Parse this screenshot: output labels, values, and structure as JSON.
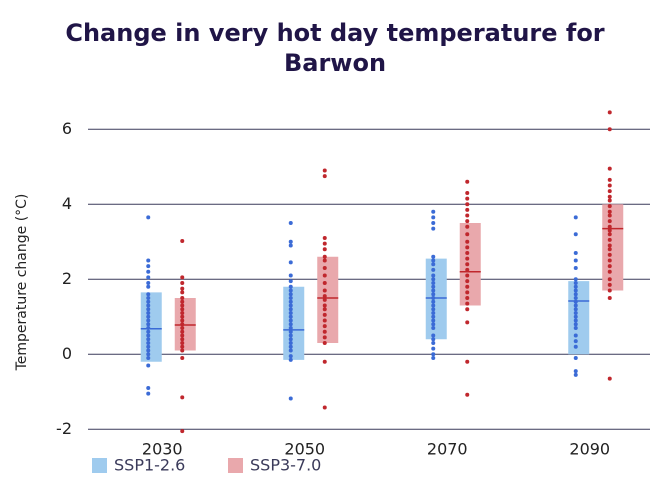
{
  "chart_data": {
    "type": "box-strip",
    "title": "Change in very hot day temperature for Barwon",
    "y_label": "Temperature change (°C)",
    "categories": [
      "2030",
      "2050",
      "2070",
      "2090"
    ],
    "ylim": [
      -2.1,
      6.6
    ],
    "yticks": [
      -2,
      0,
      2,
      4,
      6
    ],
    "grid": true,
    "series": [
      {
        "name": "SSP1-2.6",
        "color": "#3b6bd6",
        "box_color": "#9fcbee",
        "low": [
          -0.2,
          -0.15,
          0.4,
          0.0
        ],
        "high": [
          1.65,
          1.8,
          2.55,
          1.95
        ],
        "median": [
          0.68,
          0.65,
          1.5,
          1.42
        ],
        "points": [
          [
            3.65,
            2.5,
            2.35,
            2.2,
            2.05,
            1.9,
            1.8,
            1.6,
            1.5,
            1.4,
            1.3,
            1.2,
            1.1,
            1.0,
            0.9,
            0.8,
            0.7,
            0.6,
            0.5,
            0.4,
            0.3,
            0.2,
            0.1,
            0.0,
            -0.1,
            -0.3,
            -0.9,
            -1.05
          ],
          [
            3.5,
            3.0,
            2.9,
            2.45,
            2.1,
            1.95,
            1.8,
            1.7,
            1.6,
            1.5,
            1.4,
            1.3,
            1.2,
            1.1,
            1.0,
            0.9,
            0.8,
            0.7,
            0.6,
            0.5,
            0.4,
            0.3,
            0.2,
            0.1,
            -0.05,
            -0.15,
            -1.18
          ],
          [
            3.8,
            3.65,
            3.5,
            3.35,
            2.6,
            2.5,
            2.4,
            2.25,
            2.1,
            2.0,
            1.9,
            1.8,
            1.7,
            1.6,
            1.5,
            1.4,
            1.3,
            1.2,
            1.1,
            1.0,
            0.9,
            0.8,
            0.7,
            0.5,
            0.4,
            0.3,
            0.15,
            0.0,
            -0.1
          ],
          [
            3.65,
            3.2,
            2.7,
            2.5,
            2.3,
            2.0,
            1.9,
            1.8,
            1.7,
            1.6,
            1.5,
            1.4,
            1.3,
            1.2,
            1.1,
            1.0,
            0.9,
            0.8,
            0.7,
            0.5,
            0.35,
            0.2,
            -0.1,
            -0.45,
            -0.55
          ]
        ]
      },
      {
        "name": "SSP3-7.0",
        "color": "#c0272d",
        "box_color": "#e9a8ac",
        "low": [
          0.1,
          0.3,
          1.3,
          1.7
        ],
        "high": [
          1.5,
          2.6,
          3.5,
          4.0
        ],
        "median": [
          0.78,
          1.5,
          2.2,
          3.35
        ],
        "points": [
          [
            3.02,
            2.05,
            1.9,
            1.75,
            1.65,
            1.5,
            1.4,
            1.3,
            1.2,
            1.1,
            1.0,
            0.9,
            0.8,
            0.7,
            0.6,
            0.5,
            0.4,
            0.3,
            0.2,
            0.1,
            -0.1,
            -1.15,
            -2.05
          ],
          [
            4.9,
            4.75,
            3.1,
            2.95,
            2.8,
            2.6,
            2.5,
            2.3,
            2.1,
            1.9,
            1.7,
            1.55,
            1.45,
            1.3,
            1.2,
            1.05,
            0.9,
            0.75,
            0.6,
            0.45,
            0.3,
            -0.2,
            -1.42
          ],
          [
            4.6,
            4.3,
            4.15,
            4.0,
            3.85,
            3.7,
            3.55,
            3.4,
            3.2,
            3.0,
            2.85,
            2.7,
            2.55,
            2.4,
            2.25,
            2.1,
            1.95,
            1.8,
            1.65,
            1.5,
            1.35,
            1.2,
            0.85,
            -0.2,
            -1.08
          ],
          [
            6.45,
            6.0,
            4.95,
            4.65,
            4.5,
            4.35,
            4.2,
            4.1,
            3.95,
            3.8,
            3.7,
            3.55,
            3.4,
            3.3,
            3.2,
            3.05,
            2.9,
            2.8,
            2.65,
            2.5,
            2.35,
            2.2,
            2.0,
            1.85,
            1.7,
            1.5,
            -0.65
          ]
        ]
      }
    ]
  }
}
